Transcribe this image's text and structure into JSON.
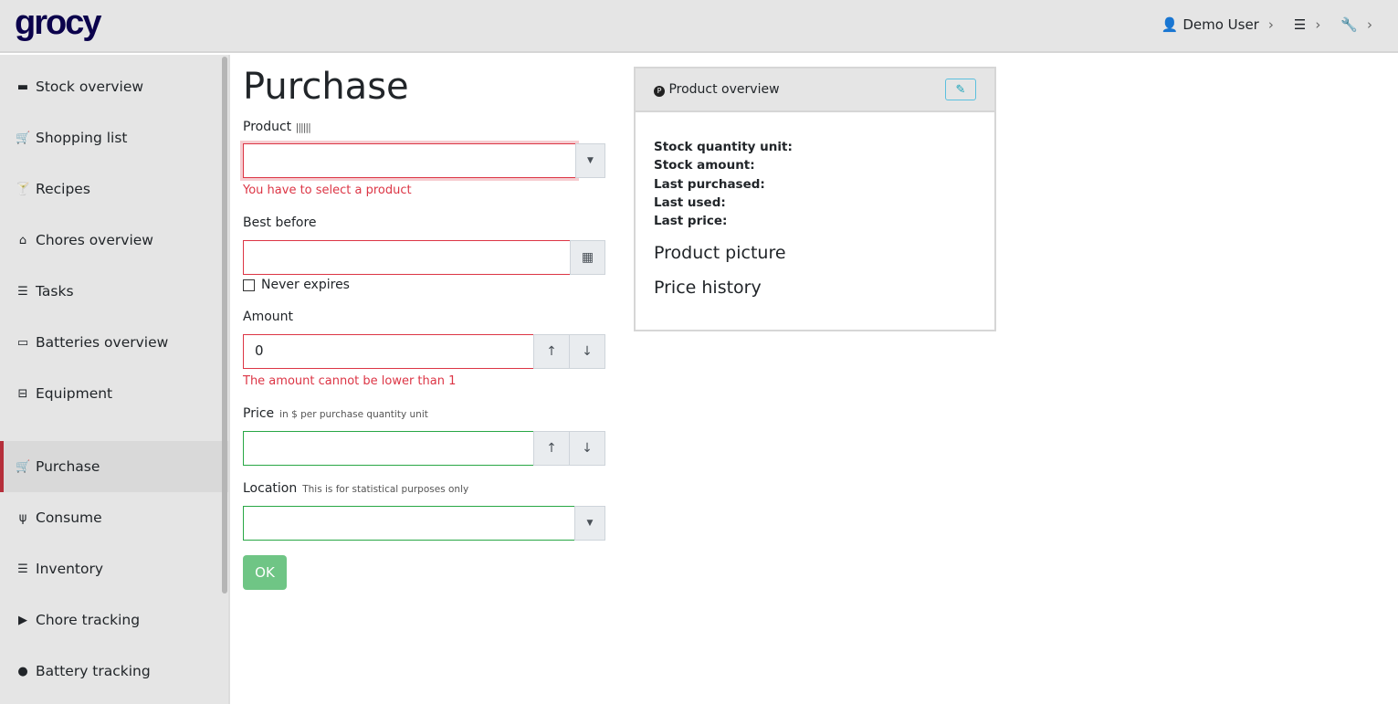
{
  "header": {
    "logo": "grocy",
    "user": "Demo User"
  },
  "sidebar": {
    "items": [
      {
        "label": "Stock overview",
        "icon": "box-icon",
        "glyph": "▬"
      },
      {
        "label": "Shopping list",
        "icon": "cart-icon",
        "glyph": "🛒"
      },
      {
        "label": "Recipes",
        "icon": "cocktail-icon",
        "glyph": "🍸"
      },
      {
        "label": "Chores overview",
        "icon": "home-icon",
        "glyph": "⌂"
      },
      {
        "label": "Tasks",
        "icon": "tasks-icon",
        "glyph": "☰"
      },
      {
        "label": "Batteries overview",
        "icon": "battery-icon",
        "glyph": "▭"
      },
      {
        "label": "Equipment",
        "icon": "toolbox-icon",
        "glyph": "⊟"
      },
      {
        "label": "Purchase",
        "icon": "cart-icon",
        "glyph": "🛒",
        "active": true
      },
      {
        "label": "Consume",
        "icon": "utensils-icon",
        "glyph": "ψ"
      },
      {
        "label": "Inventory",
        "icon": "list-icon",
        "glyph": "☰"
      },
      {
        "label": "Chore tracking",
        "icon": "play-icon",
        "glyph": "▶"
      },
      {
        "label": "Battery tracking",
        "icon": "fire-icon",
        "glyph": "●"
      }
    ]
  },
  "form": {
    "title": "Purchase",
    "product_label": "Product",
    "product_value": "",
    "product_error": "You have to select a product",
    "best_before_label": "Best before",
    "best_before_value": "",
    "never_expires": "Never expires",
    "amount_label": "Amount",
    "amount_value": "0",
    "amount_error": "The amount cannot be lower than 1",
    "price_label": "Price",
    "price_hint": "in $ per purchase quantity unit",
    "price_value": "",
    "location_label": "Location",
    "location_hint": "This is for statistical purposes only",
    "location_value": "",
    "ok": "OK"
  },
  "overview": {
    "title": "Product overview",
    "fields": [
      "Stock quantity unit:",
      "Stock amount:",
      "Last purchased:",
      "Last used:",
      "Last price:"
    ],
    "picture": "Product picture",
    "price_history": "Price history"
  }
}
